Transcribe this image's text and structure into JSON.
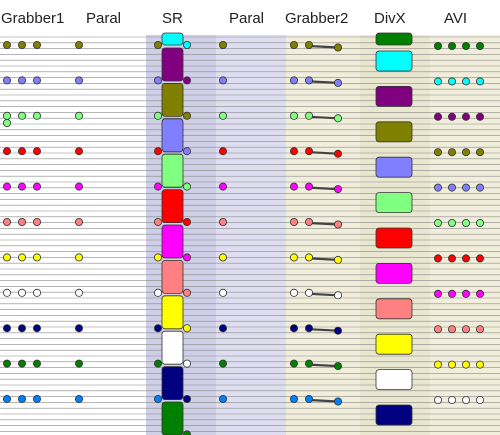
{
  "headers": {
    "grabber1": "Grabber1",
    "paral1": "Paral",
    "sr": "SR",
    "paral2": "Paral",
    "grabber2": "Grabber2",
    "divx": "DivX",
    "avi": "AVI"
  },
  "stream_colors": [
    {
      "name": "olive",
      "hex": "#808000"
    },
    {
      "name": "blue-violet",
      "hex": "#8080ff"
    },
    {
      "name": "light-green",
      "hex": "#80ff80"
    },
    {
      "name": "red",
      "hex": "#ff0000"
    },
    {
      "name": "magenta",
      "hex": "#ff00ff"
    },
    {
      "name": "salmon",
      "hex": "#ff8080"
    },
    {
      "name": "yellow",
      "hex": "#ffff00"
    },
    {
      "name": "white",
      "hex": "#ffffff"
    },
    {
      "name": "navy",
      "hex": "#000080"
    },
    {
      "name": "green",
      "hex": "#008000"
    },
    {
      "name": "sky-blue",
      "hex": "#0080ff"
    },
    {
      "name": "cyan",
      "hex": "#00ffff"
    },
    {
      "name": "purple",
      "hex": "#800080"
    }
  ],
  "sr_blocks": [
    "cyan",
    "purple",
    "olive",
    "blue-violet",
    "light-green",
    "red",
    "magenta",
    "salmon",
    "yellow",
    "white",
    "navy",
    "green"
  ],
  "divx_blocks": [
    "green",
    "cyan",
    "purple",
    "olive",
    "blue-violet",
    "light-green",
    "red",
    "magenta",
    "salmon",
    "yellow",
    "white",
    "navy"
  ],
  "column_backgrounds": {
    "sr_band": "#cfcfe8",
    "paral2_band": "#dedef0",
    "grabber2_band": "#f1efdc",
    "divx_band": "#e9e7cf",
    "avi_band": "#f1efdc"
  }
}
